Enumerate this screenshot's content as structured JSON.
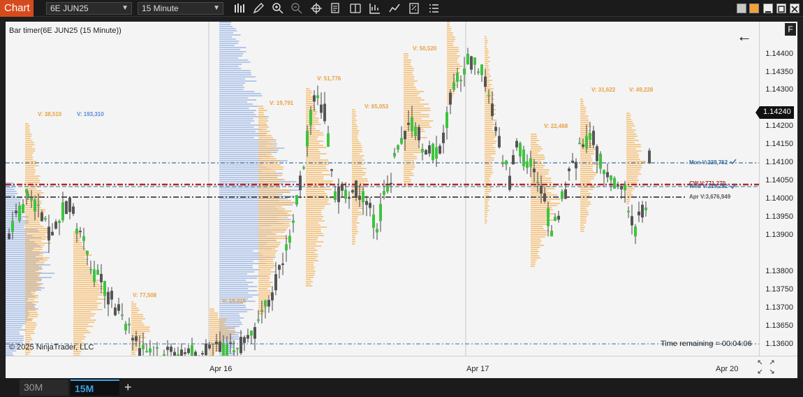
{
  "toolbar": {
    "chart_tab": "Chart",
    "instrument": "6E JUN25",
    "interval": "15 Minute"
  },
  "chart": {
    "bar_timer_label": "Bar timer(6E JUN25 (15 Minute))",
    "copyright": "© 2025 NinjaTrader, LLC",
    "time_remaining": "Time remaining = 00:04:06",
    "f_button": "F",
    "back_arrow": "←",
    "current_price": "1.14240",
    "profile_labels": [
      {
        "text": "V: 38,510",
        "color": "#e8a040"
      },
      {
        "text": "V: 193,310",
        "color": "#5a8ad8"
      },
      {
        "text": "V: 77,508",
        "color": "#e8a040"
      },
      {
        "text": "V: 19,791",
        "color": "#e8a040"
      },
      {
        "text": "V: 15,315",
        "color": "#e8a040"
      },
      {
        "text": "V: 51,776",
        "color": "#e8a040"
      },
      {
        "text": "V: 65,053",
        "color": "#e8a040"
      },
      {
        "text": "V: 50,520",
        "color": "#e8a040"
      },
      {
        "text": "V: 22,468",
        "color": "#e8a040"
      },
      {
        "text": "V: 31,622",
        "color": "#e8a040"
      },
      {
        "text": "V: 49,228",
        "color": "#e8a040"
      }
    ],
    "level_labels": [
      {
        "text": "Mon V:238,752",
        "color": "#3a6fa0"
      },
      {
        "text": "CW V:771,270",
        "color": "#b02a2a"
      },
      {
        "text": "Wed V:219,282",
        "color": "#3a6fa0"
      },
      {
        "text": "Apr V:3,676,949",
        "color": "#555555"
      }
    ],
    "y_ticks": [
      "1.14400",
      "1.14350",
      "1.14300",
      "1.14200",
      "1.14150",
      "1.14100",
      "1.14050",
      "1.14000",
      "1.13950",
      "1.13900",
      "1.13800",
      "1.13750",
      "1.13700",
      "1.13650",
      "1.13600"
    ],
    "x_ticks": [
      "Apr 16",
      "Apr 17",
      "Apr 20"
    ],
    "colors": {
      "up": "#3ec43e",
      "down": "#555555",
      "profile_orange": "#f5b760",
      "profile_blue": "#9fb8e6"
    }
  },
  "bottom_tabs": {
    "tab1": "30M",
    "tab2": "15M",
    "add": "+"
  }
}
